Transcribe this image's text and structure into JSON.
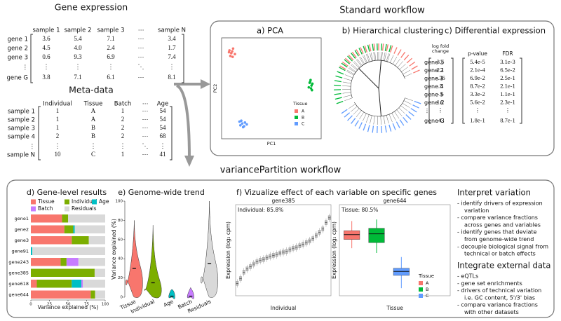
{
  "gene_expression": {
    "title": "Gene expression",
    "header": [
      "sample 1",
      "sample 2",
      "sample 3",
      "⋯",
      "sample N"
    ],
    "rows": [
      {
        "label": "gene 1",
        "cells": [
          "3.6",
          "5.4",
          "7.1",
          "⋯",
          "3.4"
        ]
      },
      {
        "label": "gene 2",
        "cells": [
          "4.5",
          "4.0",
          "2.4",
          "⋯",
          "1.7"
        ]
      },
      {
        "label": "gene 3",
        "cells": [
          "0.6",
          "9.3",
          "6.9",
          "⋯",
          "7.4"
        ]
      },
      {
        "label": "⋮",
        "cells": [
          "⋮",
          "⋮",
          "⋮",
          "⋱",
          "⋮"
        ]
      },
      {
        "label": "gene G",
        "cells": [
          "3.8",
          "7.1",
          "6.1",
          "⋯",
          "8.1"
        ]
      }
    ]
  },
  "meta_data": {
    "title": "Meta-data",
    "header": [
      "Individual",
      "Tissue",
      "Batch",
      "⋯",
      "Age"
    ],
    "rows": [
      {
        "label": "sample 1",
        "cells": [
          "1",
          "A",
          "1",
          "⋯",
          "54"
        ]
      },
      {
        "label": "sample 2",
        "cells": [
          "1",
          "A",
          "2",
          "⋯",
          "54"
        ]
      },
      {
        "label": "sample 3",
        "cells": [
          "1",
          "B",
          "2",
          "⋯",
          "54"
        ]
      },
      {
        "label": "sample 4",
        "cells": [
          "2",
          "B",
          "2",
          "⋯",
          "68"
        ]
      },
      {
        "label": "⋮",
        "cells": [
          "⋮",
          "⋮",
          "⋮",
          "⋱",
          "⋮"
        ]
      },
      {
        "label": "sample N",
        "cells": [
          "10",
          "C",
          "1",
          "⋯",
          "41"
        ]
      }
    ]
  },
  "standard_workflow": {
    "title": "Standard workflow",
    "pca": {
      "type": "scatter",
      "title": "a) PCA",
      "xlabel": "PC1",
      "ylabel": "PC2",
      "legend_title": "Tissue",
      "xlim": [
        -1,
        1
      ],
      "ylim": [
        -1,
        1
      ],
      "series": [
        {
          "name": "A",
          "color": "#f8766d",
          "x": [
            -0.92,
            -0.88,
            -0.84,
            -0.9,
            -0.86,
            -0.8,
            -0.93,
            -0.85
          ],
          "y": [
            0.82,
            0.76,
            0.86,
            0.7,
            0.8,
            0.74,
            0.78,
            0.68
          ]
        },
        {
          "name": "B",
          "color": "#00ba38",
          "x": [
            0.84,
            0.88,
            0.86,
            0.9,
            0.82,
            0.87,
            0.85,
            0.89
          ],
          "y": [
            0.12,
            0.06,
            0.18,
            0.1,
            0.02,
            0.0,
            0.14,
            -0.04
          ]
        },
        {
          "name": "C",
          "color": "#619cff",
          "x": [
            -0.7,
            -0.64,
            -0.58,
            -0.68,
            -0.6,
            -0.54,
            -0.66,
            -0.62
          ],
          "y": [
            -0.72,
            -0.76,
            -0.74,
            -0.8,
            -0.82,
            -0.78,
            -0.7,
            -0.84
          ]
        }
      ]
    },
    "clustering": {
      "title": "b) Hierarchical clustering"
    },
    "differential": {
      "title": "c) Differential expression",
      "header": [
        "log fold",
        "change",
        "p-value",
        "FDR"
      ],
      "rows": [
        {
          "label": "gene 1",
          "cells": [
            "3.6",
            "5.4e-5",
            "3.1e-3"
          ]
        },
        {
          "label": "gene 2",
          "cells": [
            "2.1",
            "2.1e-4",
            "6.5e-2"
          ]
        },
        {
          "label": "gene 3",
          "cells": [
            "-.36",
            "6.9e-2",
            "2.5e-1"
          ]
        },
        {
          "label": "gene 4",
          "cells": [
            ".5",
            "8.7e-2",
            "2.1e-1"
          ]
        },
        {
          "label": "gene 5",
          "cells": [
            "-.6",
            "3.3e-2",
            "1.1e-1"
          ]
        },
        {
          "label": "gene 6",
          "cells": [
            "1.2",
            "5.6e-2",
            "2.3e-1"
          ]
        },
        {
          "label": "⋮",
          "cells": [
            "⋮",
            "⋮",
            "⋮"
          ]
        },
        {
          "label": "gene G",
          "cells": [
            ".43",
            "1.8e-1",
            "8.7e-1"
          ]
        }
      ]
    }
  },
  "variance_workflow": {
    "title": "variancePartition workflow",
    "gene_level": {
      "type": "bar",
      "title": "d) Gene-level results",
      "xlabel": "Variance explained (%)",
      "categories": [
        "gene1",
        "gene2",
        "gene3",
        "gene91",
        "gene243",
        "gene385",
        "gene618",
        "gene644"
      ],
      "series": [
        {
          "name": "Tissue",
          "color": "#f8766d",
          "values": [
            42,
            45,
            55,
            0,
            40,
            0,
            8,
            80.5
          ]
        },
        {
          "name": "Individual",
          "color": "#7cae00",
          "values": [
            8,
            12,
            23,
            0,
            8,
            85.8,
            47,
            6
          ]
        },
        {
          "name": "Age",
          "color": "#00bfc4",
          "values": [
            0,
            2,
            0,
            2,
            0,
            0,
            13,
            0
          ]
        },
        {
          "name": "Batch",
          "color": "#c77cff",
          "values": [
            0,
            0,
            0,
            0,
            16,
            0,
            2,
            0
          ]
        },
        {
          "name": "Residuals",
          "color": "#d9d9d9",
          "values": [
            50,
            41,
            22,
            98,
            36,
            14.2,
            30,
            13.5
          ]
        }
      ],
      "xlim": [
        0,
        100
      ],
      "xticks": [
        0,
        25,
        50,
        75,
        100
      ]
    },
    "genome_wide": {
      "type": "violin",
      "title": "e) Genome-wide trend",
      "ylabel": "Variance explained (%)",
      "categories": [
        "Tissue",
        "Individual",
        "Age",
        "Batch",
        "Residuals"
      ],
      "colors": [
        "#f8766d",
        "#7cae00",
        "#00bfc4",
        "#c77cff",
        "#d9d9d9"
      ],
      "values": [
        30,
        15,
        1,
        1,
        35
      ],
      "upper": [
        80,
        75,
        8,
        10,
        100
      ],
      "ylim": [
        0,
        100
      ],
      "yticks": [
        0,
        20,
        40,
        60,
        80,
        100
      ]
    },
    "effect": {
      "title": "f) Vizualize effect of each variable on specific genes",
      "ylabel": "Expression (log₂ cpm)",
      "gene385": {
        "type": "box",
        "title": "gene385",
        "annotation": "Individual: 85.8%",
        "xlabel": "Individual",
        "color": "#bdbdbd",
        "ylim": [
          0,
          10
        ],
        "values": [
          1.2,
          1.8,
          2.6,
          3.0,
          3.3,
          3.6,
          3.9,
          4.1,
          4.2,
          4.4,
          4.6,
          4.7,
          4.8,
          5.0,
          5.1,
          5.2,
          5.4,
          5.6,
          5.7,
          5.9,
          6.1,
          6.3,
          6.5,
          6.8,
          7.2,
          7.6,
          8.0,
          8.8,
          9.4
        ]
      },
      "gene644": {
        "type": "box",
        "title": "gene644",
        "annotation": "Tissue: 80.5%",
        "xlabel": "Tissue",
        "legend_title": "Tissue",
        "ylim": [
          0,
          10
        ],
        "categories": [
          "A",
          "B",
          "C"
        ],
        "colors": [
          "#f8766d",
          "#00ba38",
          "#619cff"
        ],
        "low": [
          5.6,
          5.0,
          0.6
        ],
        "q1": [
          6.7,
          6.3,
          2.2
        ],
        "values": [
          7.3,
          7.4,
          2.7
        ],
        "q3": [
          7.8,
          8.1,
          3.1
        ],
        "high": [
          9.0,
          9.2,
          4.5
        ]
      }
    },
    "interpret": {
      "title": "Interpret variation",
      "items": [
        [
          "- identify drivers of expression",
          "variation"
        ],
        [
          "- compare variance fractions",
          "across genes and variables"
        ],
        [
          "- identify genes that deviate",
          "from genome-wide trend"
        ],
        [
          "- decouple biological signal from",
          "technical or batch effects"
        ]
      ]
    },
    "integrate": {
      "title": "Integrate external data",
      "items": [
        [
          "- eQTLs"
        ],
        [
          "- gene set enrichments"
        ],
        [
          "- drivers of technical variation",
          "i.e. GC content, 5'/3' bias"
        ],
        [
          "- compare variance fractions",
          "with other datasets"
        ]
      ]
    }
  }
}
